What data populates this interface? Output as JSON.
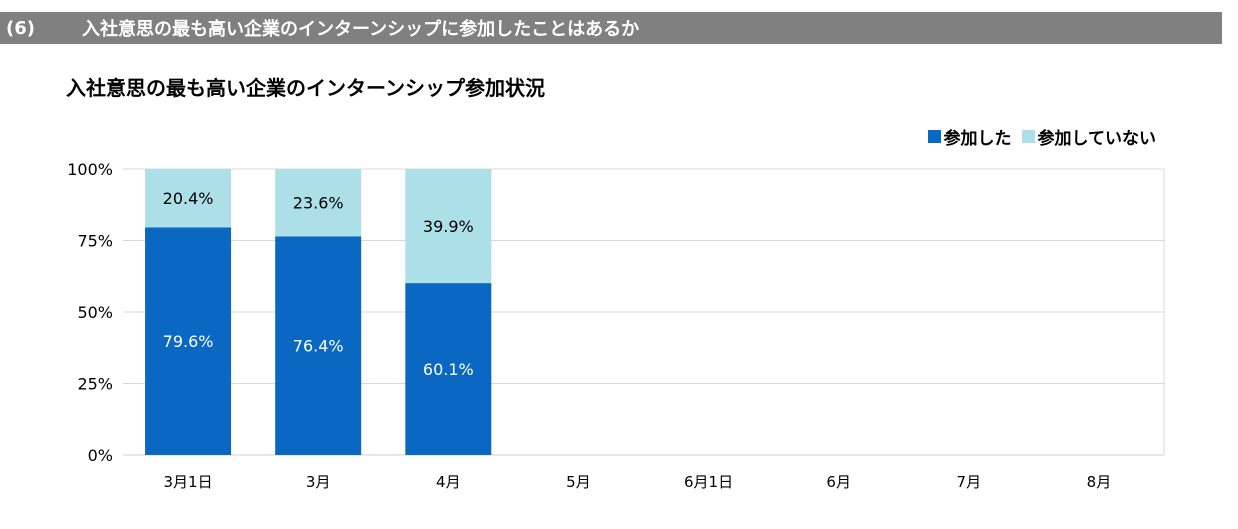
{
  "section": {
    "number": "(6)",
    "title": "入社意思の最も高い企業のインターンシップに参加したことはあるか"
  },
  "colors": {
    "participated": "#0A68C2",
    "not_participated": "#ADDFE8",
    "gridline": "#D9D9D9",
    "section_bar": "#808080"
  },
  "chart_data": {
    "type": "bar",
    "stacked": true,
    "title": "入社意思の最も高い企業のインターンシップ参加状況",
    "xlabel": "",
    "ylabel": "",
    "categories": [
      "3月1日",
      "3月",
      "4月",
      "5月",
      "6月1日",
      "6月",
      "7月",
      "8月"
    ],
    "y_ticks": [
      "0%",
      "25%",
      "50%",
      "75%",
      "100%"
    ],
    "ylim": [
      0,
      100
    ],
    "grid": true,
    "legend_position": "top-right",
    "series": [
      {
        "name": "参加した",
        "values": [
          79.6,
          76.4,
          60.1,
          null,
          null,
          null,
          null,
          null
        ],
        "labels": [
          "79.6%",
          "76.4%",
          "60.1%",
          "",
          "",
          "",
          "",
          ""
        ]
      },
      {
        "name": "参加していない",
        "values": [
          20.4,
          23.6,
          39.9,
          null,
          null,
          null,
          null,
          null
        ],
        "labels": [
          "20.4%",
          "23.6%",
          "39.9%",
          "",
          "",
          "",
          "",
          ""
        ]
      }
    ]
  }
}
